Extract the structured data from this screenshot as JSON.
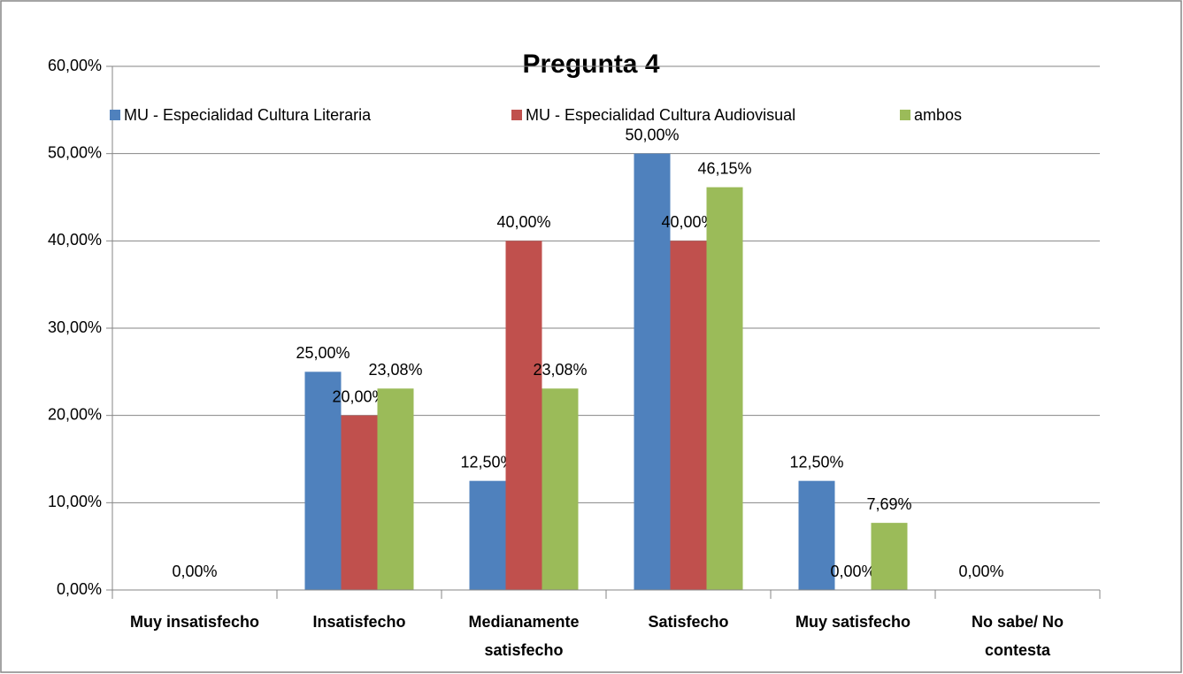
{
  "chart_data": {
    "type": "bar",
    "title": "Pregunta 4",
    "categories": [
      "Muy insatisfecho",
      "Insatisfecho",
      "Medianamente satisfecho",
      "Satisfecho",
      "Muy satisfecho",
      "No sabe/ No contesta"
    ],
    "series": [
      {
        "name": "MU - Especialidad Cultura Literaria",
        "color": "#4f81bd",
        "values": [
          null,
          25,
          12.5,
          50,
          12.5,
          0
        ],
        "value_labels": [
          null,
          "25,00%",
          "12,50%",
          "50,00%",
          "12,50%",
          "0,00%"
        ]
      },
      {
        "name": "MU - Especialidad Cultura Audiovisual",
        "color": "#c0504d",
        "values": [
          0,
          20,
          40,
          40,
          0,
          null
        ],
        "value_labels": [
          "0,00%",
          "20,00%",
          "40,00%",
          "40,00%",
          "0,00%",
          null
        ]
      },
      {
        "name": "ambos",
        "color": "#9bbb59",
        "values": [
          null,
          23.08,
          23.08,
          46.15,
          7.69,
          null
        ],
        "value_labels": [
          null,
          "23,08%",
          "23,08%",
          "46,15%",
          "7,69%",
          null
        ]
      }
    ],
    "ylim": [
      0,
      60
    ],
    "yticks": [
      {
        "value": 0,
        "label": "0,00%"
      },
      {
        "value": 10,
        "label": "10,00%"
      },
      {
        "value": 20,
        "label": "20,00%"
      },
      {
        "value": 30,
        "label": "30,00%"
      },
      {
        "value": 40,
        "label": "40,00%"
      },
      {
        "value": 50,
        "label": "50,00%"
      },
      {
        "value": 60,
        "label": "60,00%"
      }
    ],
    "grid": true,
    "legend": "top"
  }
}
